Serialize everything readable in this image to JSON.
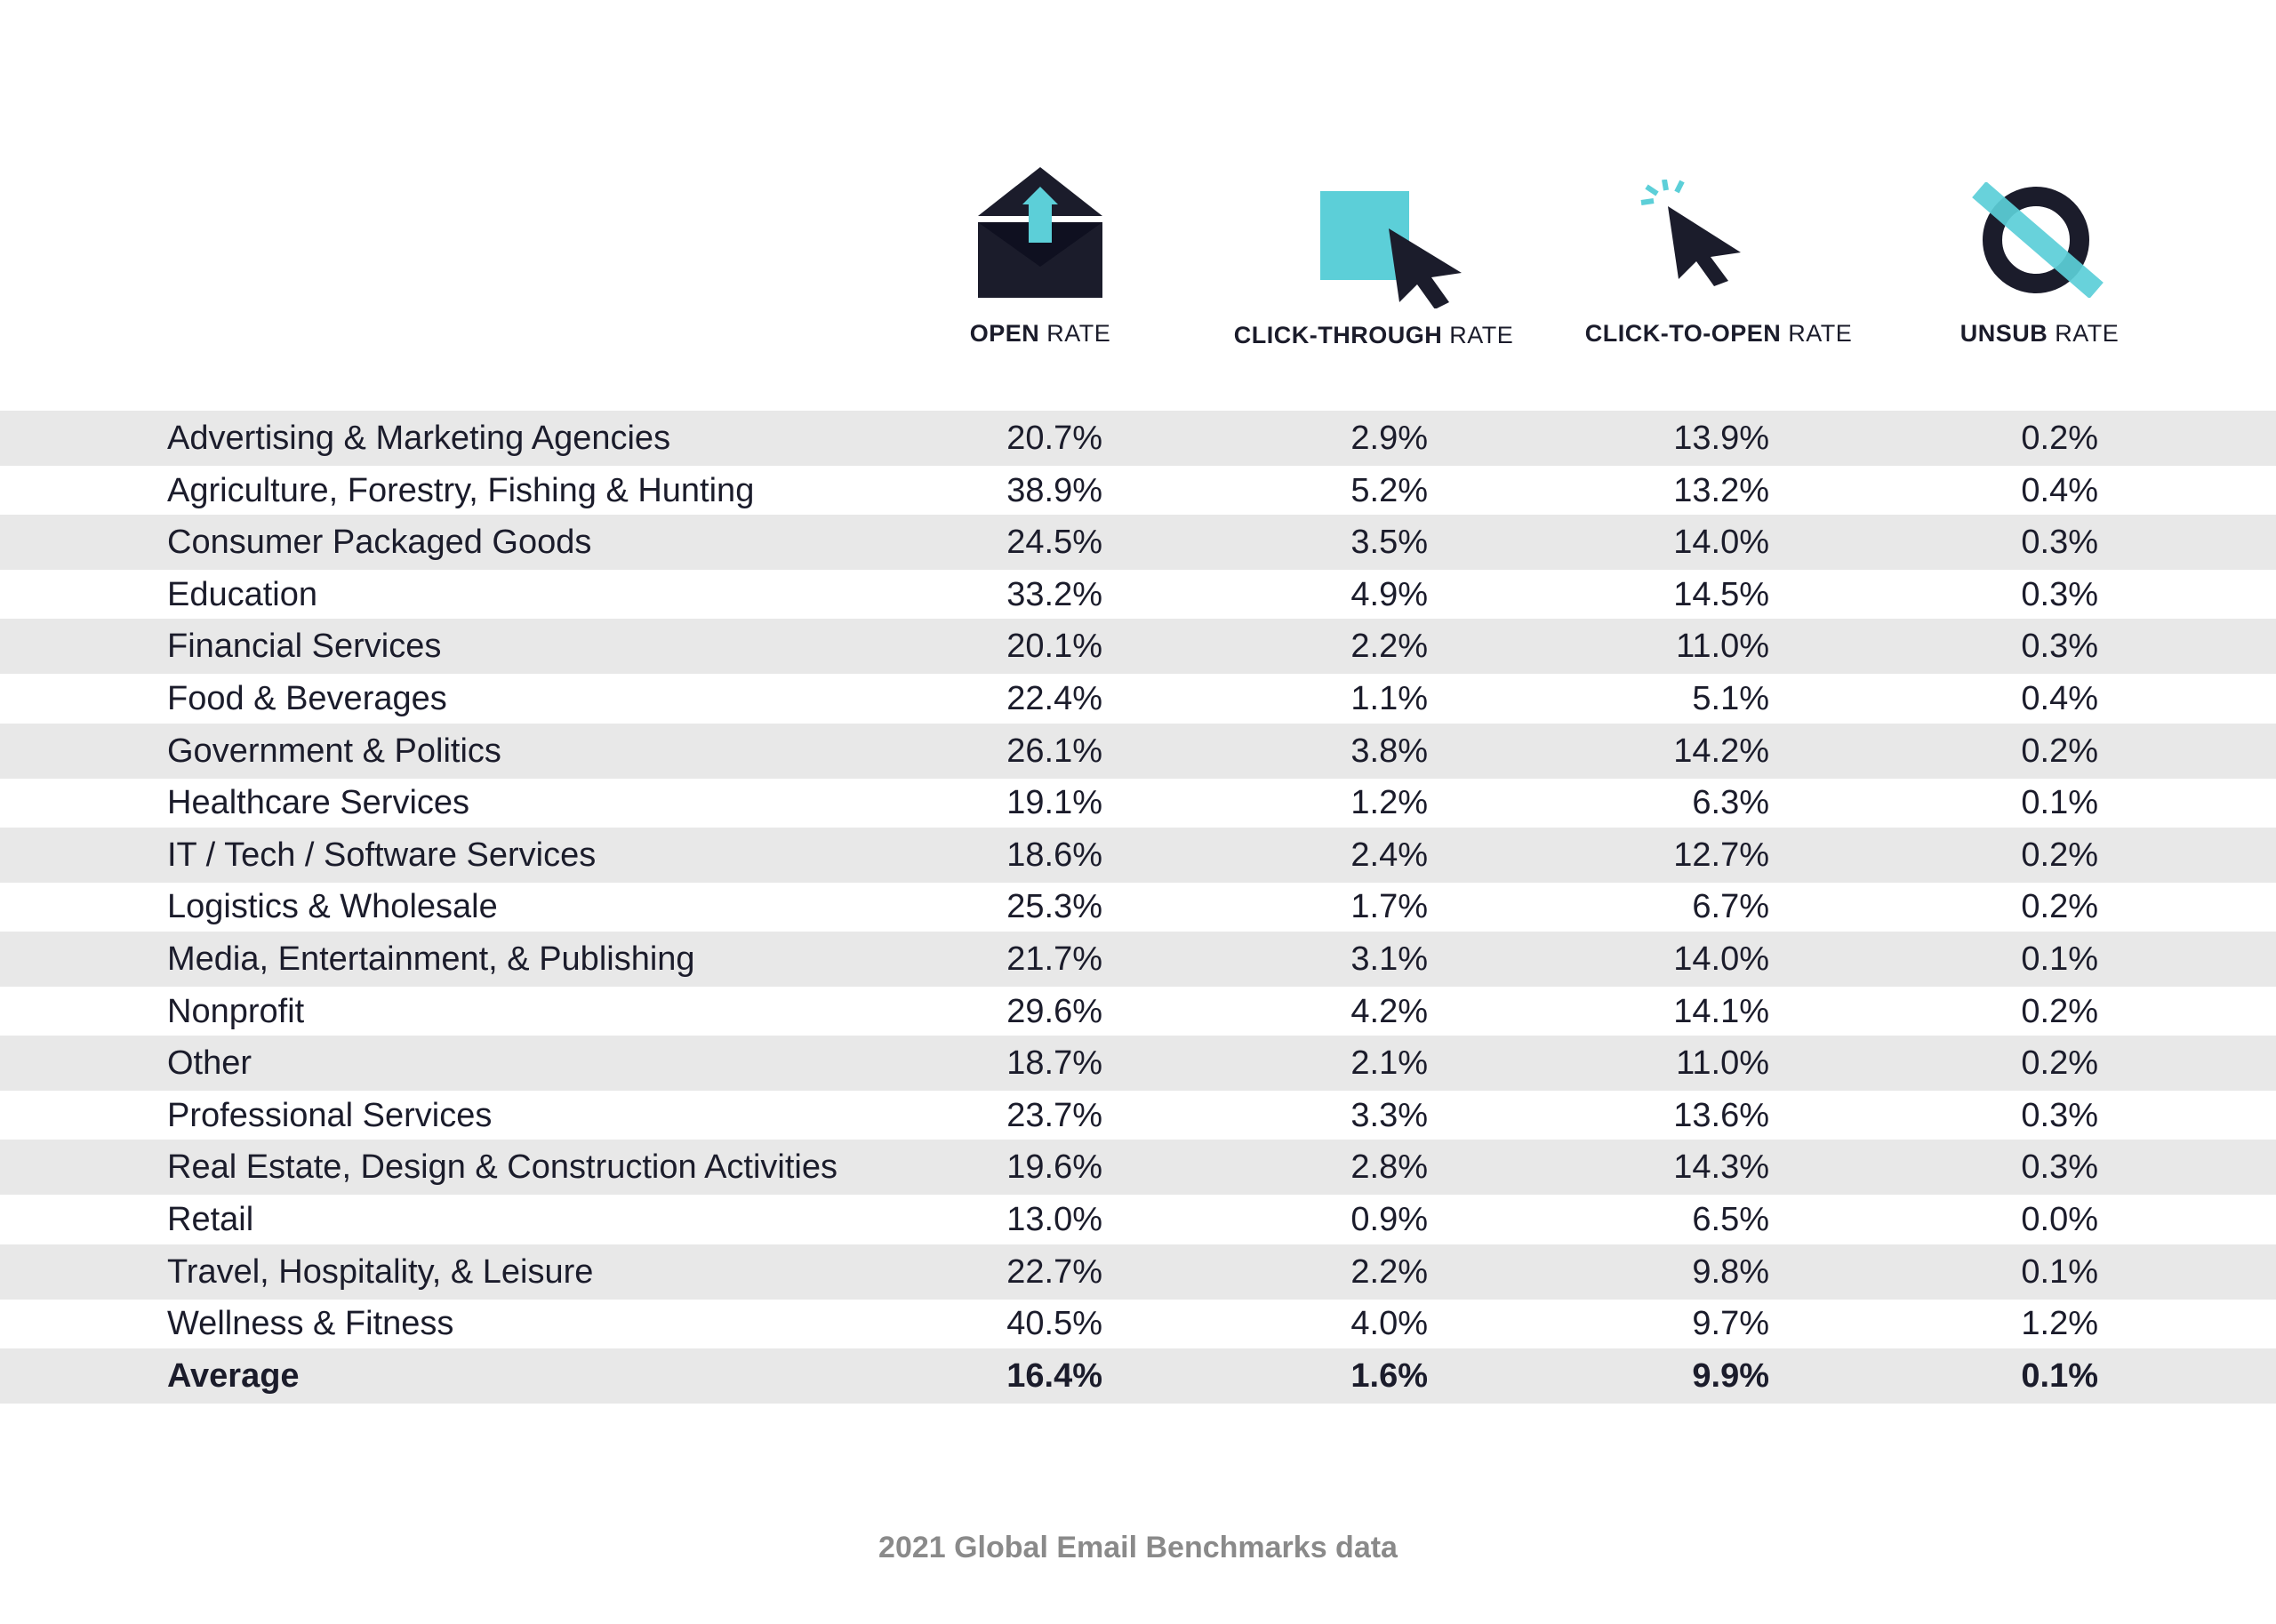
{
  "chart_data": {
    "type": "table",
    "columns": [
      {
        "bold": "OPEN",
        "rest": " RATE",
        "icon": "envelope-icon"
      },
      {
        "bold": "CLICK-THROUGH",
        "rest": " RATE",
        "icon": "cursor-square-icon"
      },
      {
        "bold": "CLICK-TO-OPEN",
        "rest": " RATE",
        "icon": "click-cursor-icon"
      },
      {
        "bold": "UNSUB",
        "rest": " RATE",
        "icon": "unsubscribe-icon"
      }
    ],
    "rows": [
      {
        "industry": "Advertising & Marketing Agencies",
        "values": [
          "20.7%",
          "2.9%",
          "13.9%",
          "0.2%"
        ]
      },
      {
        "industry": "Agriculture, Forestry, Fishing & Hunting",
        "values": [
          "38.9%",
          "5.2%",
          "13.2%",
          "0.4%"
        ]
      },
      {
        "industry": "Consumer Packaged Goods",
        "values": [
          "24.5%",
          "3.5%",
          "14.0%",
          "0.3%"
        ]
      },
      {
        "industry": "Education",
        "values": [
          "33.2%",
          "4.9%",
          "14.5%",
          "0.3%"
        ]
      },
      {
        "industry": "Financial Services",
        "values": [
          "20.1%",
          "2.2%",
          "11.0%",
          "0.3%"
        ]
      },
      {
        "industry": "Food & Beverages",
        "values": [
          "22.4%",
          "1.1%",
          "5.1%",
          "0.4%"
        ]
      },
      {
        "industry": "Government & Politics",
        "values": [
          "26.1%",
          "3.8%",
          "14.2%",
          "0.2%"
        ]
      },
      {
        "industry": "Healthcare Services",
        "values": [
          "19.1%",
          "1.2%",
          "6.3%",
          "0.1%"
        ]
      },
      {
        "industry": "IT / Tech / Software Services",
        "values": [
          "18.6%",
          "2.4%",
          "12.7%",
          "0.2%"
        ]
      },
      {
        "industry": "Logistics & Wholesale",
        "values": [
          "25.3%",
          "1.7%",
          "6.7%",
          "0.2%"
        ]
      },
      {
        "industry": "Media, Entertainment, & Publishing",
        "values": [
          "21.7%",
          "3.1%",
          "14.0%",
          "0.1%"
        ]
      },
      {
        "industry": "Nonprofit",
        "values": [
          "29.6%",
          "4.2%",
          "14.1%",
          "0.2%"
        ]
      },
      {
        "industry": "Other",
        "values": [
          "18.7%",
          "2.1%",
          "11.0%",
          "0.2%"
        ]
      },
      {
        "industry": "Professional Services",
        "values": [
          "23.7%",
          "3.3%",
          "13.6%",
          "0.3%"
        ]
      },
      {
        "industry": "Real Estate, Design & Construction Activities",
        "values": [
          "19.6%",
          "2.8%",
          "14.3%",
          "0.3%"
        ]
      },
      {
        "industry": "Retail",
        "values": [
          "13.0%",
          "0.9%",
          "6.5%",
          "0.0%"
        ]
      },
      {
        "industry": "Travel, Hospitality, & Leisure",
        "values": [
          "22.7%",
          "2.2%",
          "9.8%",
          "0.1%"
        ]
      },
      {
        "industry": "Wellness & Fitness",
        "values": [
          "40.5%",
          "4.0%",
          "9.7%",
          "1.2%"
        ]
      }
    ],
    "average": {
      "industry": "Average",
      "values": [
        "16.4%",
        "1.6%",
        "9.9%",
        "0.1%"
      ]
    },
    "footer": "2021 Global Email Benchmarks data",
    "colors": {
      "ink": "#1b1c2b",
      "accent": "#5ccfd8",
      "row_shade": "#e8e8e8",
      "footer": "#8a8a8a"
    }
  }
}
